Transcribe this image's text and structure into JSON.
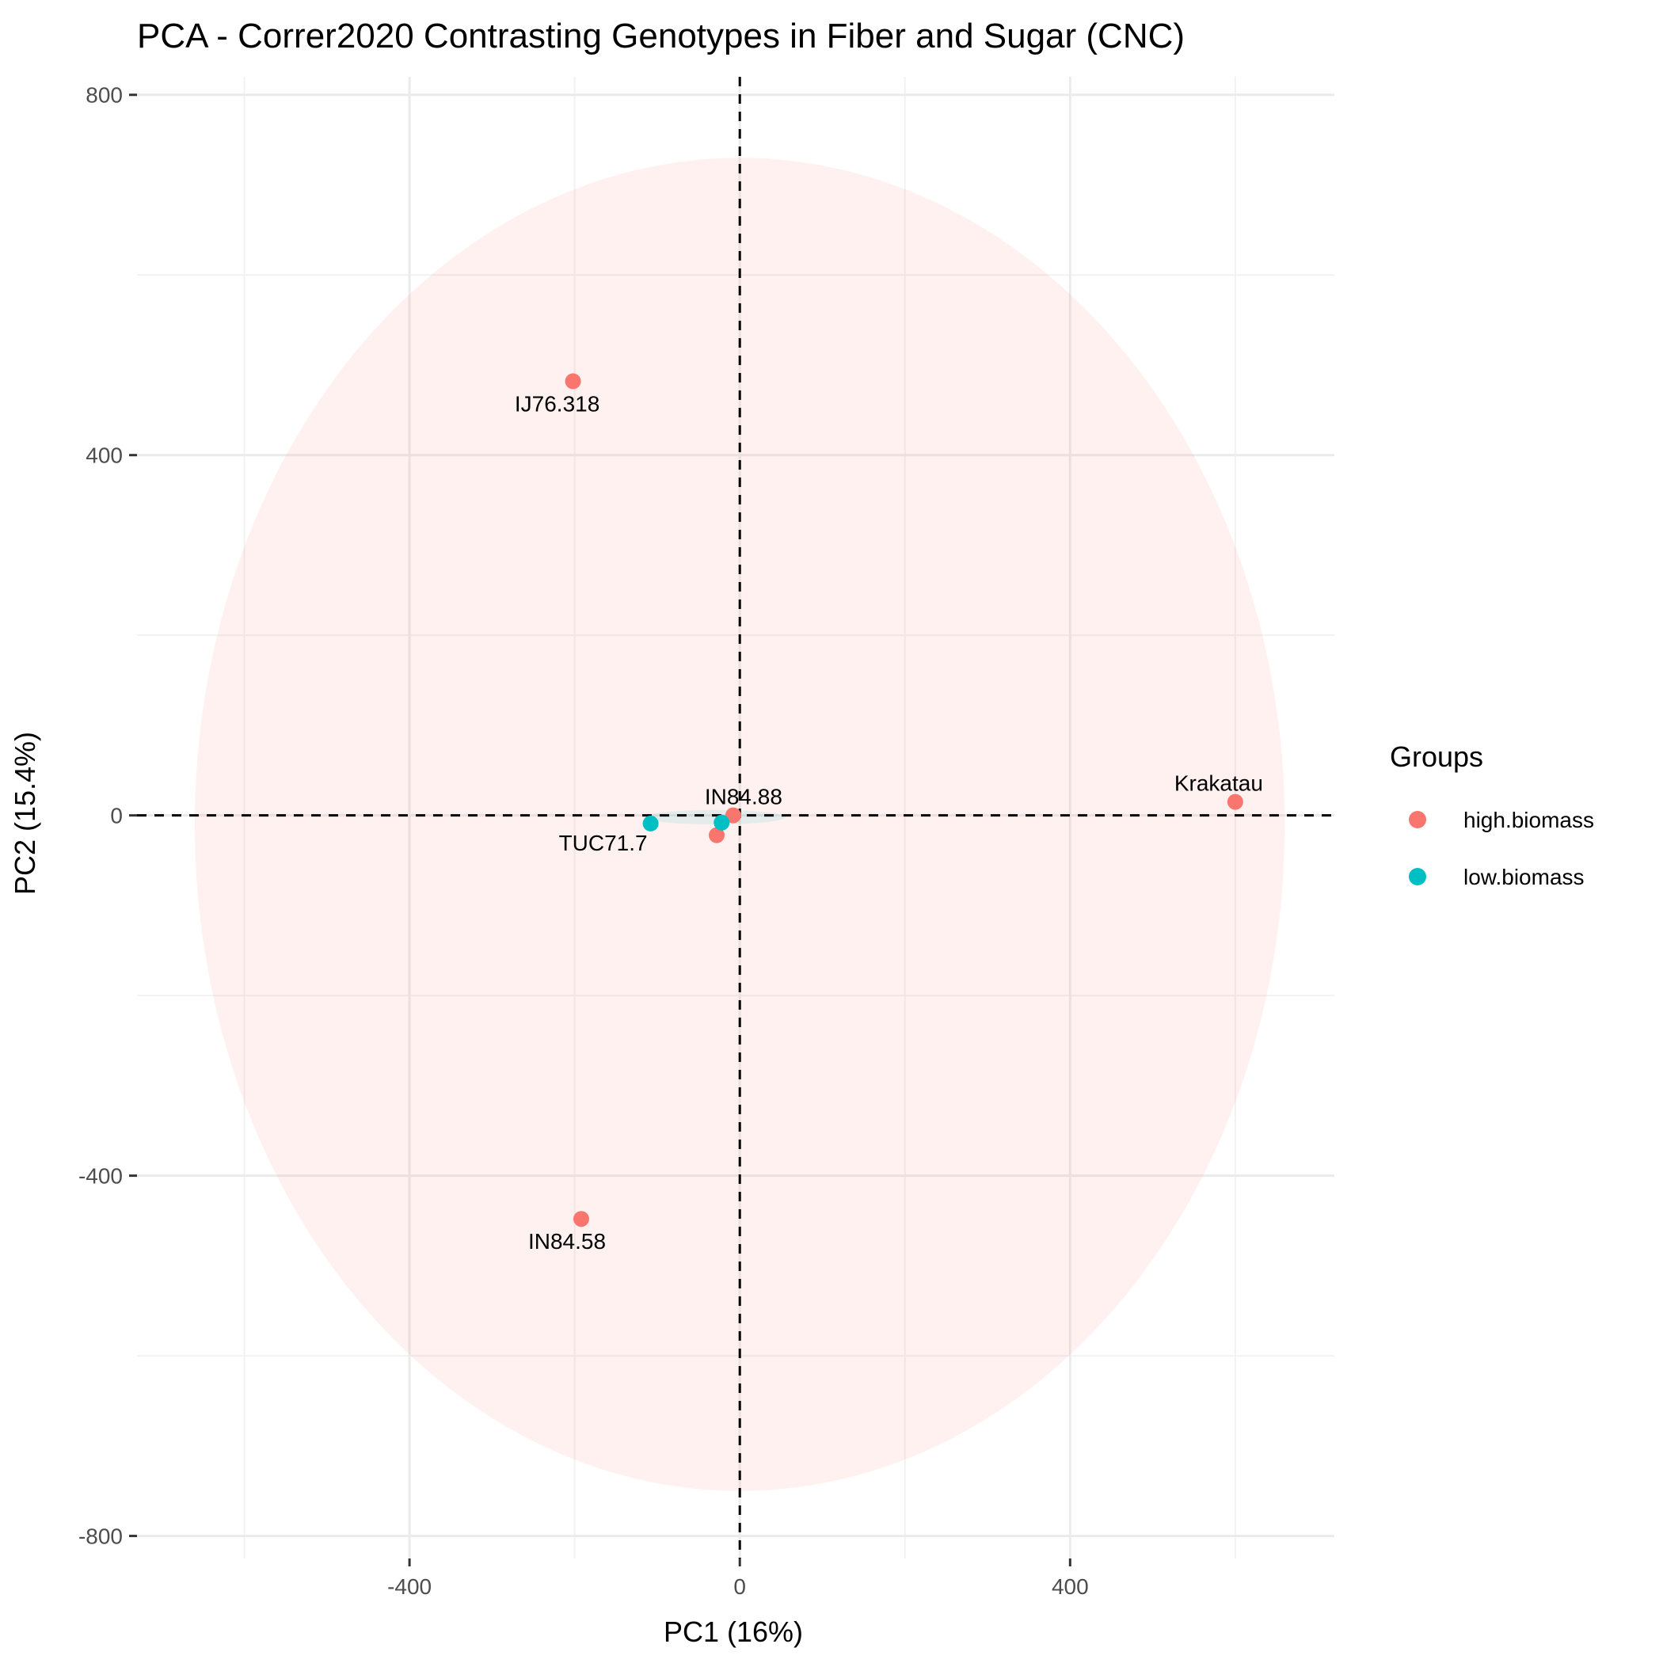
{
  "chart_data": {
    "type": "scatter",
    "title": "PCA - Correr2020 Contrasting Genotypes in Fiber and Sugar (CNC)",
    "xlabel": "PC1 (16%)",
    "ylabel": "PC2 (15.4%)",
    "xlim": [
      -730,
      720
    ],
    "ylim": [
      -825,
      820
    ],
    "x_ticks": [
      -400,
      0,
      400
    ],
    "x_tick_labels": [
      "-400",
      "0",
      "400"
    ],
    "y_ticks": [
      800,
      400,
      0,
      -400,
      -800
    ],
    "y_tick_labels": [
      "800",
      "400",
      "0",
      "-400",
      "-800"
    ],
    "grid": true,
    "reference_lines": {
      "x": 0,
      "y": 0,
      "style": "dashed"
    },
    "legend": {
      "title": "Groups",
      "position": "right",
      "entries": [
        {
          "name": "high.biomass",
          "color": "#F8766D"
        },
        {
          "name": "low.biomass",
          "color": "#00BFC4"
        }
      ]
    },
    "ellipses": [
      {
        "group": "high.biomass",
        "center": [
          0,
          -10
        ],
        "radius_x": 660,
        "radius_y": 740,
        "fill": "#F8766D",
        "opacity": 0.1
      },
      {
        "group": "low.biomass",
        "center": [
          -30,
          -2
        ],
        "radius_x": 85,
        "radius_y": 8,
        "fill": "#00BFC4",
        "opacity": 0.1
      }
    ],
    "series": [
      {
        "name": "high.biomass",
        "color": "#F8766D",
        "points": [
          {
            "x": -202,
            "y": 482,
            "label": "IJ76.318"
          },
          {
            "x": -192,
            "y": -448,
            "label": "IN84.58"
          },
          {
            "x": 600,
            "y": 15,
            "label": "Krakatau"
          },
          {
            "x": -8,
            "y": 0,
            "label": "IN84.88"
          },
          {
            "x": -28,
            "y": -22,
            "label": ""
          }
        ]
      },
      {
        "name": "low.biomass",
        "color": "#00BFC4",
        "points": [
          {
            "x": -108,
            "y": -9,
            "label": "TUC71.7"
          },
          {
            "x": -22,
            "y": -8,
            "label": ""
          }
        ]
      }
    ]
  }
}
